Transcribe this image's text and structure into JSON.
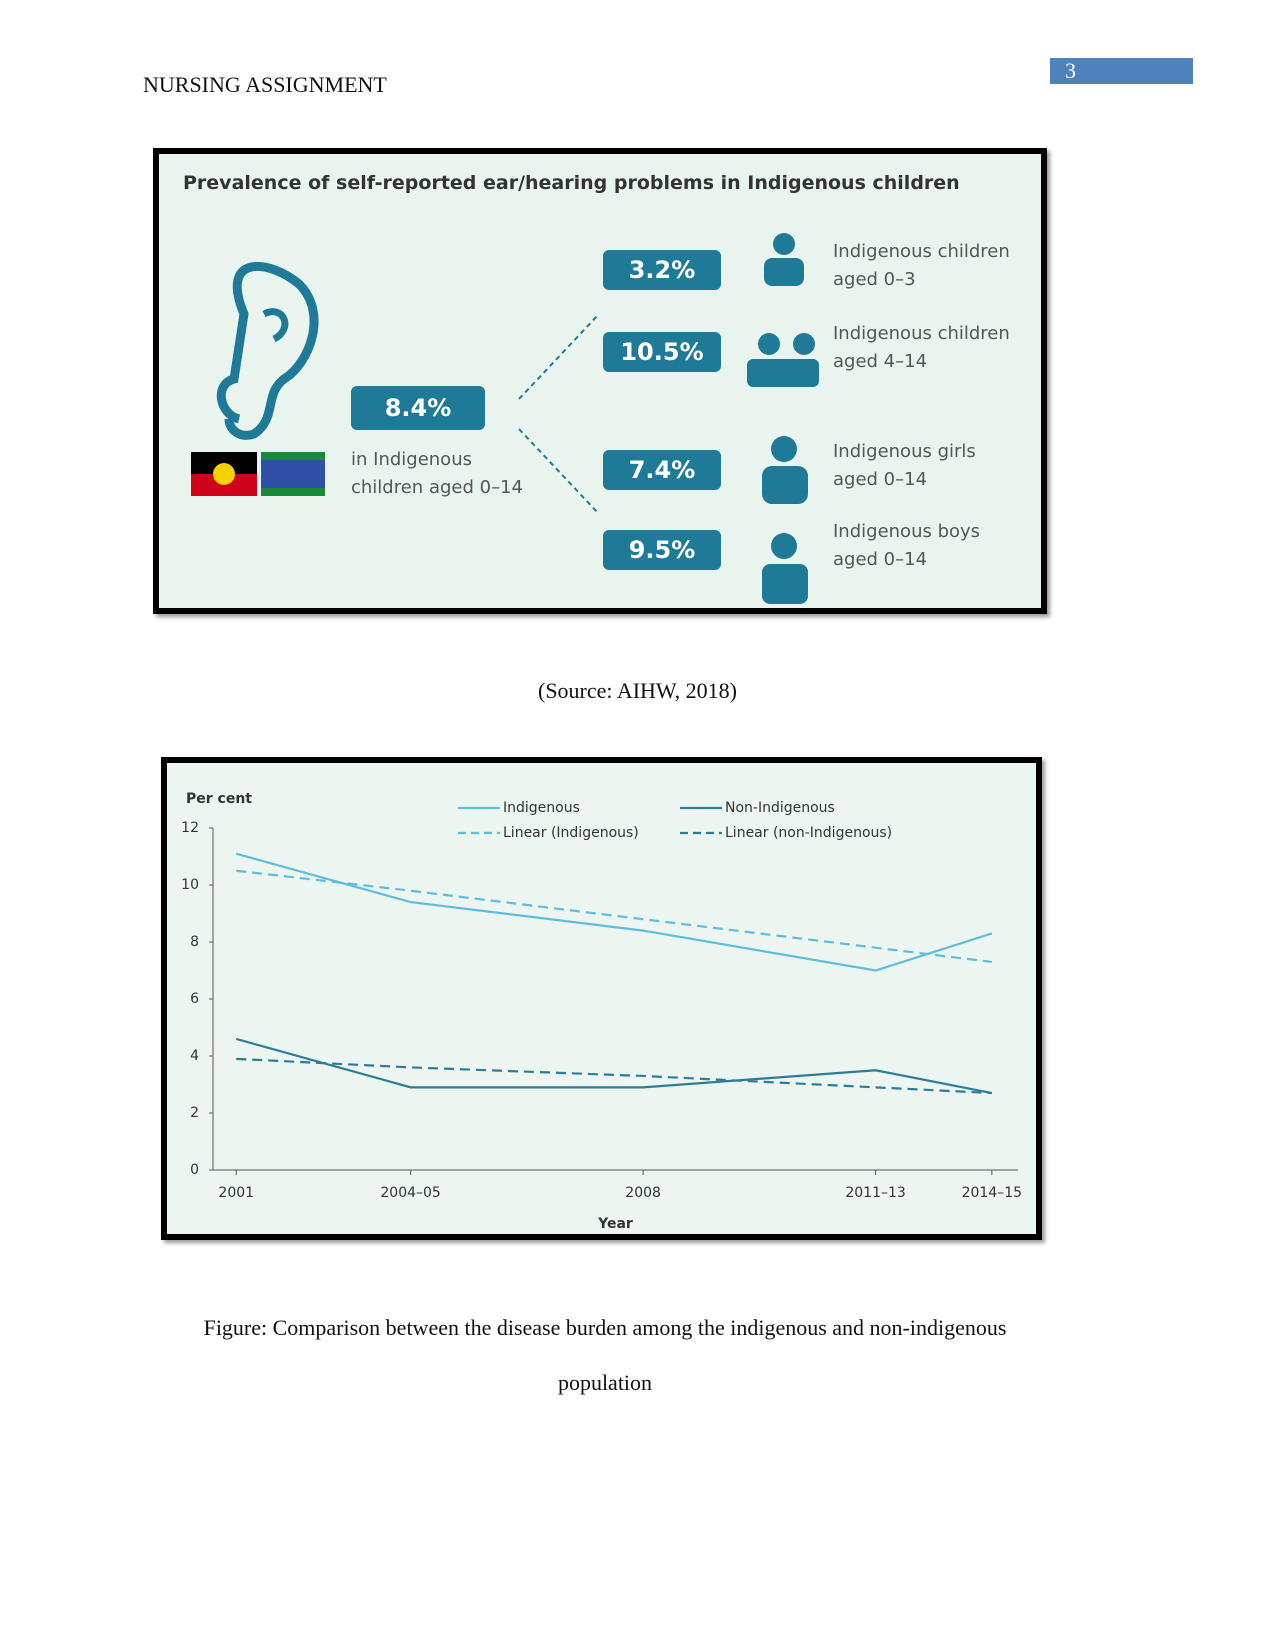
{
  "header": {
    "title": "NURSING ASSIGNMENT",
    "page_number": "3"
  },
  "infographic": {
    "title": "Prevalence of self-reported ear/hearing problems in Indigenous children",
    "overall": {
      "value": "8.4%",
      "label": "in Indigenous children aged 0–14"
    },
    "groups": [
      {
        "value": "3.2%",
        "label": "Indigenous children aged 0–3"
      },
      {
        "value": "10.5%",
        "label": "Indigenous children aged 4–14"
      },
      {
        "value": "7.4%",
        "label": "Indigenous girls aged 0–14"
      },
      {
        "value": "9.5%",
        "label": "Indigenous boys aged 0–14"
      }
    ]
  },
  "source": "(Source: AIHW, 2018)",
  "chart_data": {
    "type": "line",
    "y_label": "Per cent",
    "x_label": "Year",
    "x": [
      2001,
      2004,
      2008,
      2012,
      2014
    ],
    "xlim": [
      2000.6,
      2014.45
    ],
    "xticks": [
      {
        "value": 2001,
        "label": "2001"
      },
      {
        "value": 2004,
        "label": "2004–05"
      },
      {
        "value": 2008,
        "label": "2008"
      },
      {
        "value": 2012,
        "label": "2011–13"
      },
      {
        "value": 2014,
        "label": "2014–15"
      }
    ],
    "ylim": [
      0,
      12
    ],
    "yticks": [
      0,
      2,
      4,
      6,
      8,
      10,
      12
    ],
    "series": [
      {
        "name": "Indigenous",
        "color": "#5bbde0",
        "dashed": false,
        "values": [
          11.1,
          9.4,
          8.4,
          7.0,
          8.3
        ]
      },
      {
        "name": "Linear (Indigenous)",
        "color": "#5bbde0",
        "dashed": true,
        "values": [
          10.5,
          9.8,
          8.8,
          7.8,
          7.3
        ]
      },
      {
        "name": "Non-Indigenous",
        "color": "#2b7c9b",
        "dashed": false,
        "values": [
          4.6,
          2.9,
          2.9,
          3.5,
          2.7
        ]
      },
      {
        "name": "Linear (non-Indigenous)",
        "color": "#2b7c9b",
        "dashed": true,
        "values": [
          3.9,
          3.6,
          3.3,
          2.9,
          2.7
        ]
      }
    ]
  },
  "caption": "Figure: Comparison between the disease burden among the indigenous and non-indigenous population"
}
